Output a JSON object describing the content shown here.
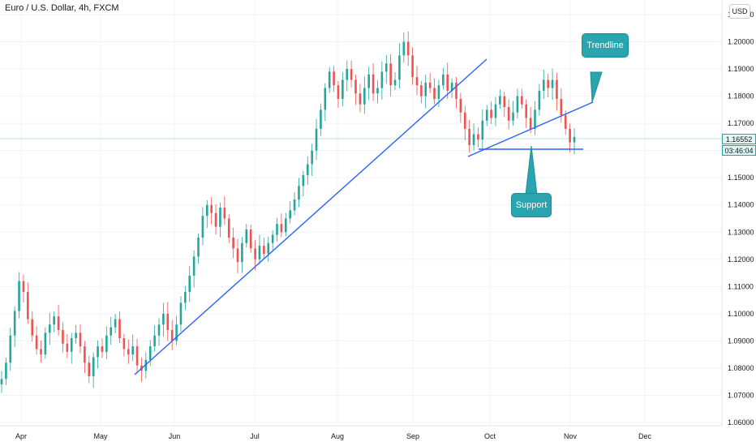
{
  "header": {
    "title": "Euro / U.S. Dollar, 4h, FXCM"
  },
  "currency_button": {
    "label": "USD"
  },
  "current_price": {
    "price": "1.16552",
    "countdown": "03:46:04"
  },
  "annotations": {
    "trendline_label": "Trendline",
    "support_label": "Support"
  },
  "colors": {
    "up": "#26a69a",
    "down": "#ef5350",
    "line": "#2962ff",
    "callout": "#2aa5b0"
  },
  "chart_data": {
    "type": "line",
    "title": "Euro / U.S. Dollar, 4h, FXCM",
    "xlabel": "",
    "ylabel": "",
    "x_ticks": [
      "Apr",
      "May",
      "Jun",
      "Jul",
      "Aug",
      "Sep",
      "Oct",
      "Nov",
      "Dec"
    ],
    "y_ticks": [
      "1.21000",
      "1.20000",
      "1.19000",
      "1.18000",
      "1.17000",
      "1.16000",
      "1.15000",
      "1.14000",
      "1.13000",
      "1.12000",
      "1.11000",
      "1.10000",
      "1.09000",
      "1.08000",
      "1.07000",
      "1.06000"
    ],
    "ylim": [
      1.06,
      1.21
    ],
    "grid": true,
    "series": [
      {
        "values": [
          1.076,
          1.082,
          1.092,
          1.101,
          1.112,
          1.108,
          1.098,
          1.092,
          1.087,
          1.085,
          1.093,
          1.096,
          1.099,
          1.094,
          1.089,
          1.086,
          1.091,
          1.093,
          1.088,
          1.082,
          1.077,
          1.084,
          1.088,
          1.086,
          1.092,
          1.095,
          1.098,
          1.091,
          1.087,
          1.085,
          1.088,
          1.081,
          1.079,
          1.083,
          1.088,
          1.092,
          1.096,
          1.1,
          1.094,
          1.09,
          1.096,
          1.104,
          1.108,
          1.114,
          1.121,
          1.128,
          1.136,
          1.14,
          1.137,
          1.132,
          1.139,
          1.135,
          1.128,
          1.124,
          1.119,
          1.126,
          1.131,
          1.124,
          1.12,
          1.125,
          1.122,
          1.126,
          1.129,
          1.133,
          1.13,
          1.135,
          1.138,
          1.142,
          1.147,
          1.151,
          1.155,
          1.16,
          1.168,
          1.175,
          1.183,
          1.189,
          1.184,
          1.179,
          1.186,
          1.19,
          1.186,
          1.181,
          1.177,
          1.183,
          1.188,
          1.181,
          1.183,
          1.189,
          1.192,
          1.184,
          1.186,
          1.195,
          1.2,
          1.195,
          1.187,
          1.184,
          1.18,
          1.185,
          1.183,
          1.179,
          1.184,
          1.188,
          1.182,
          1.185,
          1.179,
          1.174,
          1.168,
          1.162,
          1.166,
          1.164,
          1.171,
          1.175,
          1.172,
          1.177,
          1.18,
          1.176,
          1.171,
          1.174,
          1.18,
          1.177,
          1.172,
          1.168,
          1.175,
          1.182,
          1.186,
          1.183,
          1.186,
          1.179,
          1.173,
          1.168,
          1.163,
          1.165
        ]
      }
    ]
  }
}
